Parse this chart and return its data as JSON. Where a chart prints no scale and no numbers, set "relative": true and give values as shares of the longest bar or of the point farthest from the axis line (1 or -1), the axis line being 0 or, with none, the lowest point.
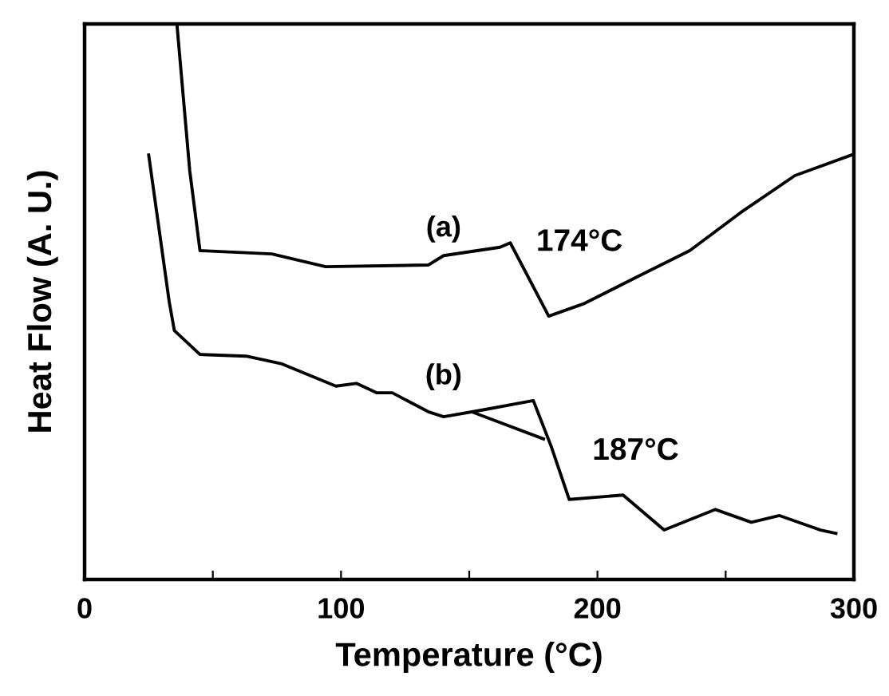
{
  "chart_data": {
    "type": "line",
    "relative": true,
    "xlabel": "Temperature (°C)",
    "ylabel": "Heat Flow (A. U.)",
    "xlim": [
      0,
      300
    ],
    "xticks": [
      0,
      {
        "value": 50,
        "label": null
      },
      100,
      {
        "value": 150,
        "label": null
      },
      200,
      {
        "value": 250,
        "label": null
      },
      300
    ],
    "grid": false,
    "legend": false,
    "marker": "none",
    "line_style": "solid",
    "series": [
      {
        "name": "(a)",
        "color": "#000000",
        "x": [
          36,
          41,
          45,
          73,
          94,
          134,
          140,
          162,
          166,
          181,
          195,
          216,
          236,
          256,
          277,
          299
        ],
        "values": [
          1.0,
          0.736,
          0.592,
          0.586,
          0.563,
          0.566,
          0.583,
          0.598,
          0.606,
          0.474,
          0.497,
          0.546,
          0.592,
          0.661,
          0.727,
          0.764
        ]
      },
      {
        "name": "(b)",
        "color": "#000000",
        "x": [
          25,
          33,
          35,
          45,
          63,
          77,
          98,
          106,
          114,
          120,
          134,
          140,
          155,
          175,
          182,
          189,
          210,
          226,
          246,
          260,
          271,
          287,
          293
        ],
        "values": [
          0.764,
          0.5,
          0.448,
          0.405,
          0.402,
          0.388,
          0.348,
          0.353,
          0.336,
          0.336,
          0.302,
          0.293,
          0.305,
          0.322,
          0.239,
          0.144,
          0.152,
          0.089,
          0.126,
          0.103,
          0.115,
          0.089,
          0.083
        ]
      },
      {
        "color": "#000000",
        "x": [
          152,
          179
        ],
        "values": [
          0.3,
          0.253
        ]
      }
    ],
    "annotations": [
      "174°C",
      "187°C"
    ]
  }
}
